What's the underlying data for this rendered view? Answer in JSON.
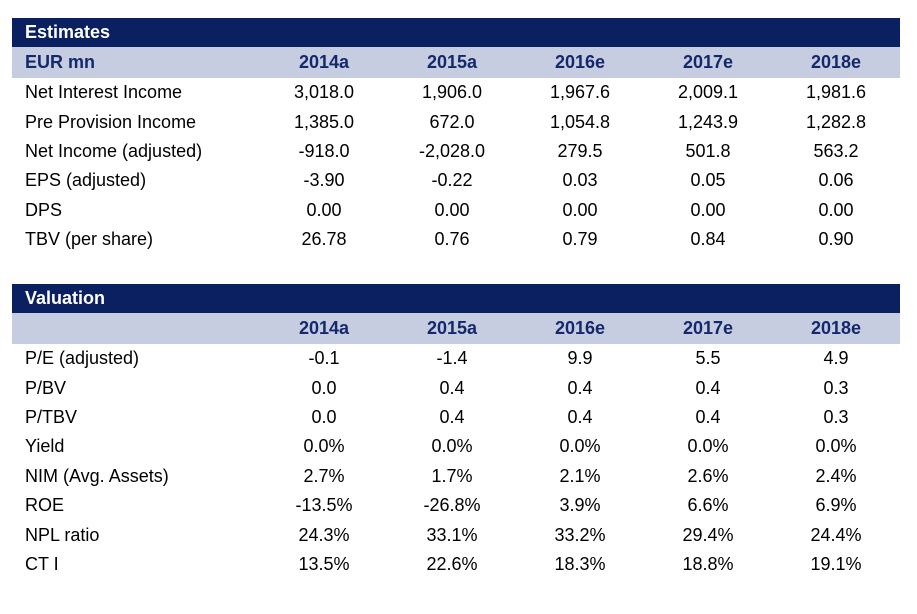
{
  "estimates": {
    "title": "Estimates",
    "header_label": "EUR mn",
    "years": [
      "2014a",
      "2015a",
      "2016e",
      "2017e",
      "2018e"
    ],
    "rows": [
      {
        "label": "Net Interest Income",
        "values": [
          "3,018.0",
          "1,906.0",
          "1,967.6",
          "2,009.1",
          "1,981.6"
        ]
      },
      {
        "label": "Pre Provision Income",
        "values": [
          "1,385.0",
          "672.0",
          "1,054.8",
          "1,243.9",
          "1,282.8"
        ]
      },
      {
        "label": "Net Income (adjusted)",
        "values": [
          "-918.0",
          "-2,028.0",
          "279.5",
          "501.8",
          "563.2"
        ]
      },
      {
        "label": "EPS (adjusted)",
        "values": [
          "-3.90",
          "-0.22",
          "0.03",
          "0.05",
          "0.06"
        ]
      },
      {
        "label": "DPS",
        "values": [
          "0.00",
          "0.00",
          "0.00",
          "0.00",
          "0.00"
        ]
      },
      {
        "label": "TBV (per share)",
        "values": [
          "26.78",
          "0.76",
          "0.79",
          "0.84",
          "0.90"
        ]
      }
    ]
  },
  "valuation": {
    "title": "Valuation",
    "header_label": "",
    "years": [
      "2014a",
      "2015a",
      "2016e",
      "2017e",
      "2018e"
    ],
    "rows": [
      {
        "label": "P/E (adjusted)",
        "values": [
          "-0.1",
          "-1.4",
          "9.9",
          "5.5",
          "4.9"
        ]
      },
      {
        "label": "P/BV",
        "values": [
          "0.0",
          "0.4",
          "0.4",
          "0.4",
          "0.3"
        ]
      },
      {
        "label": "P/TBV",
        "values": [
          "0.0",
          "0.4",
          "0.4",
          "0.4",
          "0.3"
        ]
      },
      {
        "label": "Yield",
        "values": [
          "0.0%",
          "0.0%",
          "0.0%",
          "0.0%",
          "0.0%"
        ]
      },
      {
        "label": "NIM (Avg. Assets)",
        "values": [
          "2.7%",
          "1.7%",
          "2.1%",
          "2.6%",
          "2.4%"
        ]
      },
      {
        "label": "ROE",
        "values": [
          "-13.5%",
          "-26.8%",
          "3.9%",
          "6.6%",
          "6.9%"
        ]
      },
      {
        "label": "NPL ratio",
        "values": [
          "24.3%",
          "33.1%",
          "33.2%",
          "29.4%",
          "24.4%"
        ]
      },
      {
        "label": "CT I",
        "values": [
          "13.5%",
          "22.6%",
          "18.3%",
          "18.8%",
          "19.1%"
        ]
      }
    ]
  }
}
